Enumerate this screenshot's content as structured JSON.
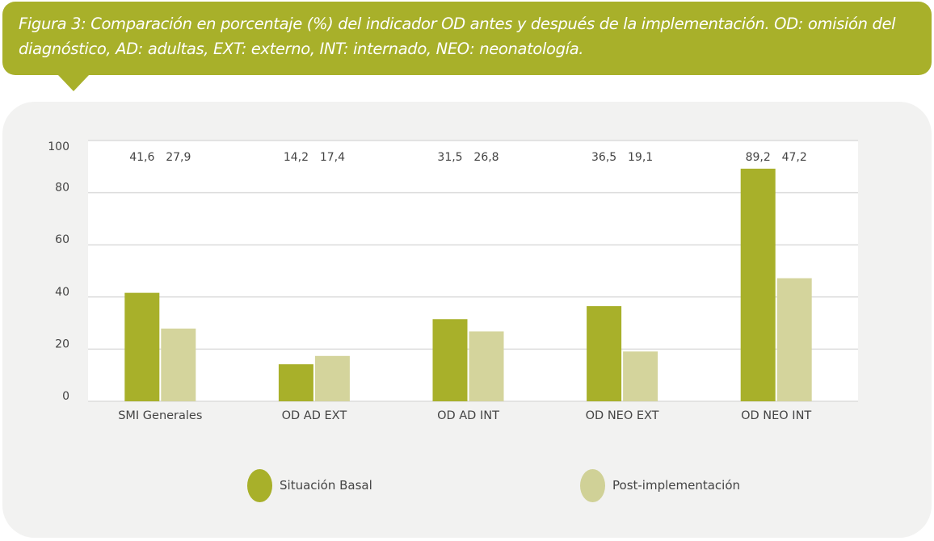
{
  "caption": {
    "line1": "Figura 3: Comparación en porcentaje (%) del indicador OD antes y después de la implementación. OD: omisión del",
    "line2": "diagnóstico, AD: adultas, EXT: externo, INT: internado, NEO: neonatología."
  },
  "colors": {
    "accent": "#a8b02a",
    "basal": "#a8b02a",
    "post": "#d4d49c",
    "panel_bg": "#f2f2f1",
    "plot_bg": "#ffffff",
    "grid": "#dcdcdc",
    "text": "#444444"
  },
  "chart_data": {
    "type": "bar",
    "title": "Comparación en porcentaje (%) del indicador OD antes y después de la implementación",
    "xlabel": "",
    "ylabel": "",
    "ylim": [
      0,
      100
    ],
    "yticks": [
      0,
      20,
      40,
      60,
      80,
      100
    ],
    "grid": true,
    "legend_position": "bottom",
    "categories": [
      "SMI Generales",
      "OD AD EXT",
      "OD AD INT",
      "OD NEO EXT",
      "OD NEO INT"
    ],
    "series": [
      {
        "name": "Situación Basal",
        "color": "#a8b02a",
        "values": [
          41.6,
          14.2,
          31.5,
          36.5,
          89.2
        ],
        "labels": [
          "41,6",
          "14,2",
          "31,5",
          "36,5",
          "89,2"
        ]
      },
      {
        "name": "Post-implementación",
        "color": "#d4d49c",
        "values": [
          27.9,
          17.4,
          26.8,
          19.1,
          47.2
        ],
        "labels": [
          "27,9",
          "17,4",
          "26,8",
          "19,1",
          "47,2"
        ]
      }
    ]
  }
}
